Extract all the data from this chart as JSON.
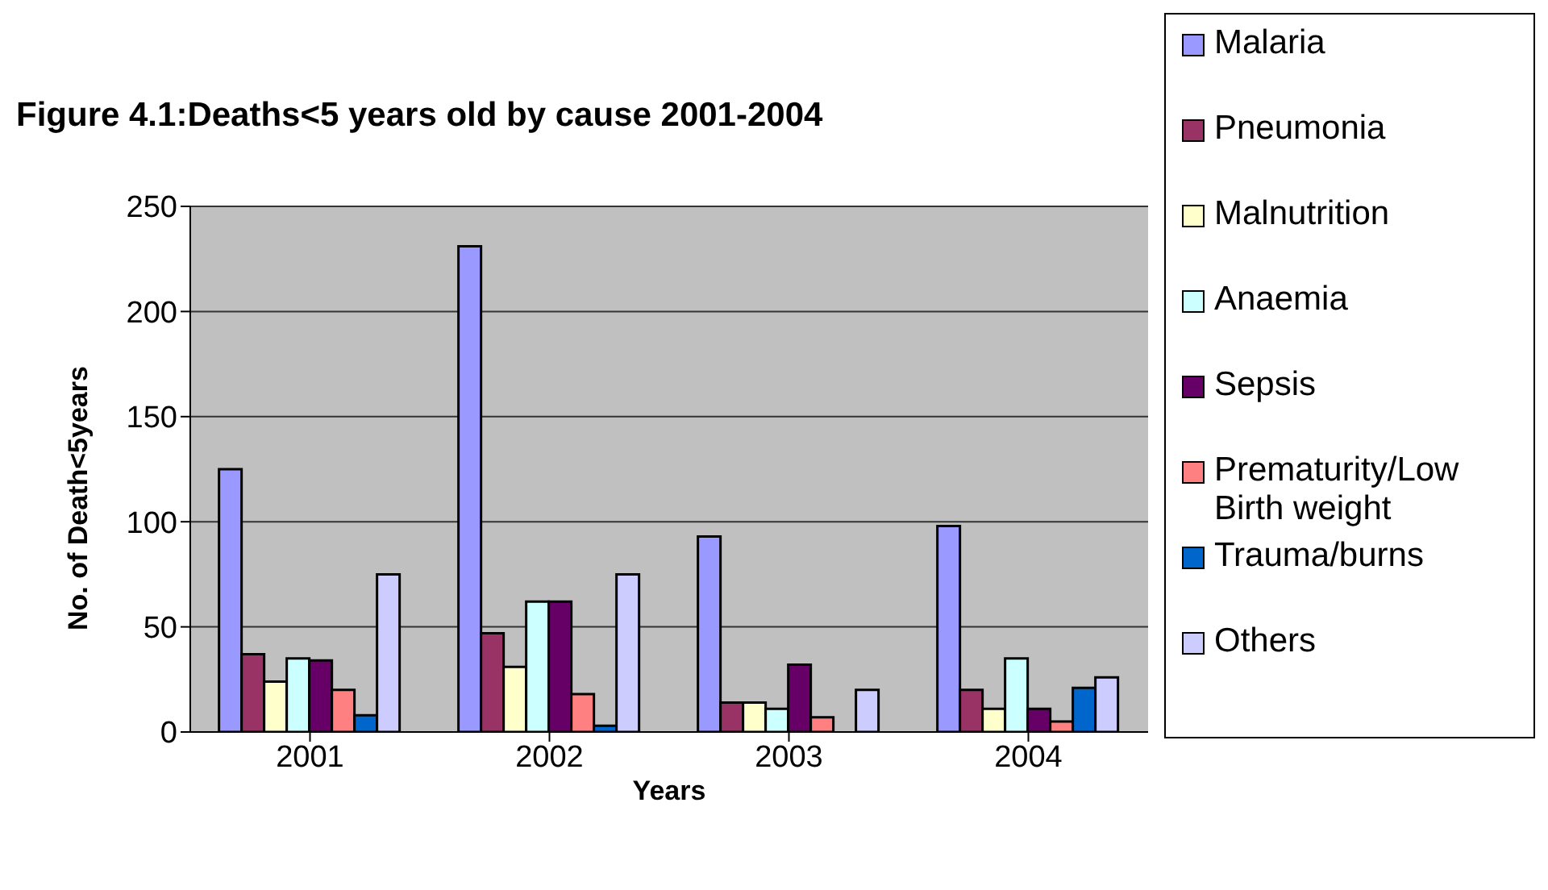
{
  "chart_data": {
    "type": "bar",
    "title": "Figure 4.1:Deaths<5 years old by cause 2001-2004",
    "xlabel": "Years",
    "ylabel": "No. of Death<5years",
    "categories": [
      "2001",
      "2002",
      "2003",
      "2004"
    ],
    "series": [
      {
        "name": "Malaria",
        "color": "#9999ff",
        "values": [
          125,
          231,
          93,
          98
        ]
      },
      {
        "name": "Pneumonia",
        "color": "#993366",
        "values": [
          37,
          47,
          14,
          20
        ]
      },
      {
        "name": "Malnutrition",
        "color": "#ffffcc",
        "values": [
          24,
          31,
          14,
          11
        ]
      },
      {
        "name": "Anaemia",
        "color": "#ccffff",
        "values": [
          35,
          62,
          11,
          35
        ]
      },
      {
        "name": "Sepsis",
        "color": "#660066",
        "values": [
          34,
          62,
          32,
          11
        ]
      },
      {
        "name": "Prematurity/Low Birth weight",
        "color": "#ff8080",
        "values": [
          20,
          18,
          7,
          5
        ]
      },
      {
        "name": "Trauma/burns",
        "color": "#0066cc",
        "values": [
          8,
          3,
          0,
          21
        ]
      },
      {
        "name": "Others",
        "color": "#ccccff",
        "values": [
          75,
          75,
          20,
          26
        ]
      }
    ],
    "ylim": [
      0,
      250
    ],
    "yticks": [
      0,
      50,
      100,
      150,
      200,
      250
    ],
    "grid": "y",
    "legend": "right"
  }
}
